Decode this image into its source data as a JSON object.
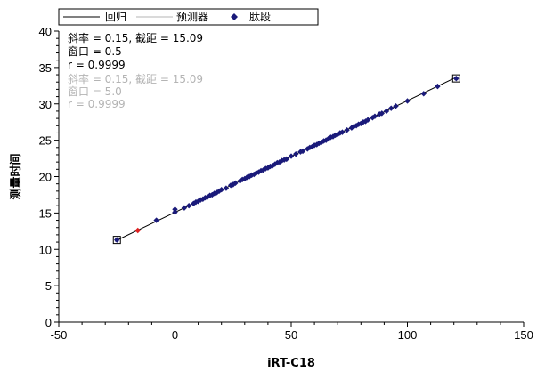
{
  "chart_data": {
    "type": "scatter",
    "xlabel": "iRT-C18",
    "ylabel": "测量时间",
    "xlim": [
      -50,
      150
    ],
    "ylim": [
      0,
      40
    ],
    "xticks": [
      -50,
      0,
      50,
      100,
      150
    ],
    "yticks": [
      0,
      5,
      10,
      15,
      20,
      25,
      30,
      35,
      40
    ],
    "grid": false,
    "legend": {
      "placement": "top-left",
      "entries": [
        {
          "label": "回归",
          "style": "line",
          "color": "#000000"
        },
        {
          "label": "预测器",
          "style": "line",
          "color": "#b4b4b4"
        },
        {
          "label": "肽段",
          "style": "marker",
          "color": "#1a1a7a"
        }
      ]
    },
    "annotations": {
      "regression": {
        "color": "#000000",
        "lines": [
          "斜率 = 0.15, 截距 = 15.09",
          "窗口 = 0.5",
          "r = 0.9999"
        ]
      },
      "predictor": {
        "color": "#b4b4b4",
        "lines": [
          "斜率 = 0.15, 截距 = 15.09",
          "窗口 = 5.0",
          "r = 0.9999"
        ]
      }
    },
    "regression_line": {
      "x": [
        -25,
        121
      ],
      "slope": 0.1535,
      "intercept": 15.09
    },
    "series": [
      {
        "name": "肽段",
        "marker": "diamond",
        "color": "#1a1a7a",
        "x": [
          -25,
          -8,
          0,
          0,
          4,
          6,
          8,
          9,
          10,
          11,
          12,
          13,
          14,
          15,
          16,
          17,
          18,
          19,
          20,
          22,
          24,
          25,
          26,
          28,
          29,
          30,
          31,
          32,
          33,
          34,
          35,
          36,
          37,
          38,
          39,
          40,
          41,
          42,
          43,
          44,
          45,
          46,
          47,
          48,
          50,
          52,
          54,
          55,
          57,
          58,
          59,
          60,
          61,
          62,
          63,
          64,
          65,
          66,
          67,
          68,
          69,
          70,
          71,
          72,
          74,
          76,
          77,
          78,
          79,
          80,
          81,
          82,
          83,
          85,
          86,
          88,
          89,
          91,
          93,
          95,
          100,
          107,
          113,
          121
        ],
        "y": [
          11.3,
          14.0,
          15.1,
          15.5,
          15.7,
          16.0,
          16.3,
          16.5,
          16.6,
          16.8,
          16.9,
          17.1,
          17.2,
          17.4,
          17.5,
          17.7,
          17.8,
          18.0,
          18.2,
          18.4,
          18.8,
          18.9,
          19.1,
          19.4,
          19.6,
          19.7,
          19.9,
          20.0,
          20.2,
          20.3,
          20.5,
          20.6,
          20.8,
          20.9,
          21.1,
          21.2,
          21.4,
          21.5,
          21.7,
          21.9,
          22.0,
          22.2,
          22.3,
          22.4,
          22.8,
          23.1,
          23.4,
          23.5,
          23.8,
          24.0,
          24.1,
          24.3,
          24.4,
          24.6,
          24.7,
          24.9,
          25.0,
          25.2,
          25.4,
          25.5,
          25.7,
          25.8,
          26.0,
          26.1,
          26.4,
          26.7,
          26.9,
          27.0,
          27.2,
          27.3,
          27.5,
          27.6,
          27.8,
          28.1,
          28.3,
          28.6,
          28.7,
          29.0,
          29.4,
          29.7,
          30.4,
          31.4,
          32.4,
          33.5
        ]
      },
      {
        "name": "",
        "marker": "diamond",
        "color": "#e02020",
        "x": [
          -16
        ],
        "y": [
          12.6
        ]
      },
      {
        "name": "",
        "marker": "boxed-square",
        "color": "#000000",
        "x": [
          -25,
          121
        ],
        "y": [
          11.3,
          33.5
        ]
      }
    ]
  }
}
